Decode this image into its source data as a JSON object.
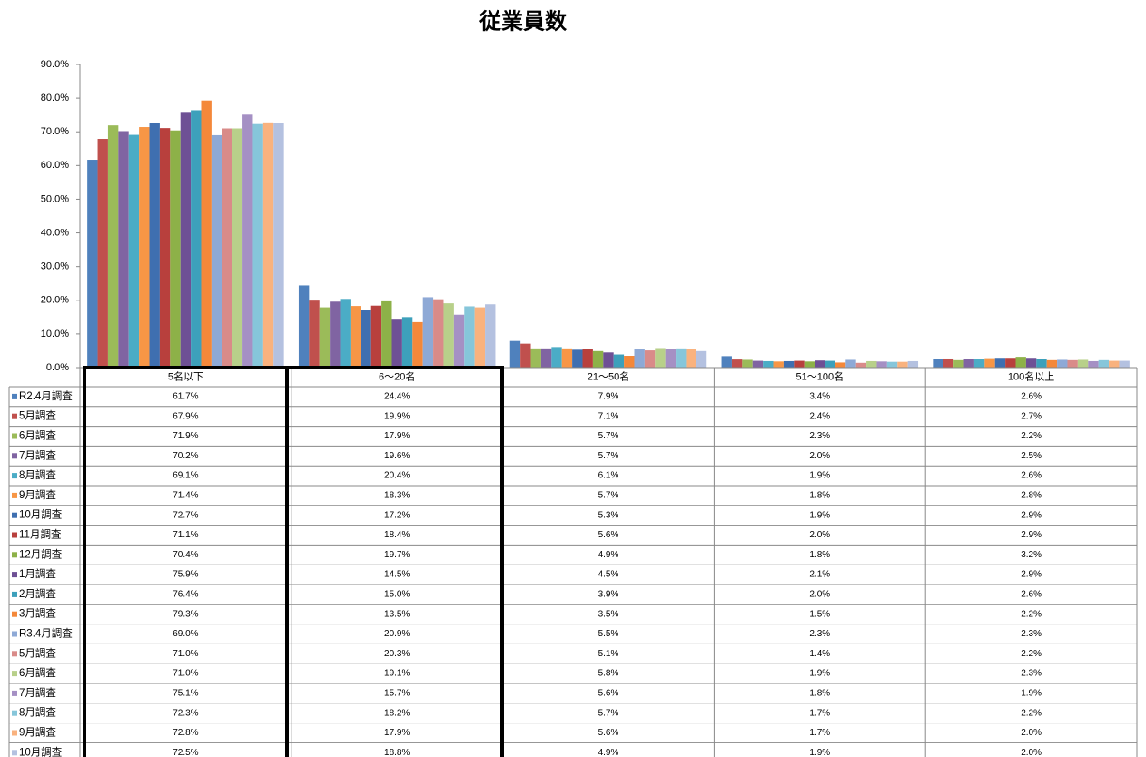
{
  "chart_data": {
    "type": "bar",
    "title": "従業員数",
    "categories": [
      "5名以下",
      "6～20名",
      "21～50名",
      "51～100名",
      "100名以上"
    ],
    "ylim": [
      0,
      90
    ],
    "yticks": [
      {
        "value": 0,
        "label": "0.0%"
      },
      {
        "value": 10,
        "label": "10.0%"
      },
      {
        "value": 20,
        "label": "20.0%"
      },
      {
        "value": 30,
        "label": "30.0%"
      },
      {
        "value": 40,
        "label": "40.0%"
      },
      {
        "value": 50,
        "label": "50.0%"
      },
      {
        "value": 60,
        "label": "60.0%"
      },
      {
        "value": 70,
        "label": "70.0%"
      },
      {
        "value": 80,
        "label": "80.0%"
      },
      {
        "value": 90,
        "label": "90.0%"
      }
    ],
    "series": [
      {
        "name": "R2.4月調査",
        "color": "#4F81BD",
        "values": [
          61.7,
          24.4,
          7.9,
          3.4,
          2.6
        ],
        "value_labels": [
          "61.7%",
          "24.4%",
          "7.9%",
          "3.4%",
          "2.6%"
        ]
      },
      {
        "name": "5月調査",
        "color": "#C0504D",
        "values": [
          67.9,
          19.9,
          7.1,
          2.4,
          2.7
        ],
        "value_labels": [
          "67.9%",
          "19.9%",
          "7.1%",
          "2.4%",
          "2.7%"
        ]
      },
      {
        "name": "6月調査",
        "color": "#9BBB59",
        "values": [
          71.9,
          17.9,
          5.7,
          2.3,
          2.2
        ],
        "value_labels": [
          "71.9%",
          "17.9%",
          "5.7%",
          "2.3%",
          "2.2%"
        ]
      },
      {
        "name": "7月調査",
        "color": "#8064A2",
        "values": [
          70.2,
          19.6,
          5.7,
          2.0,
          2.5
        ],
        "value_labels": [
          "70.2%",
          "19.6%",
          "5.7%",
          "2.0%",
          "2.5%"
        ]
      },
      {
        "name": "8月調査",
        "color": "#4BACC6",
        "values": [
          69.1,
          20.4,
          6.1,
          1.9,
          2.6
        ],
        "value_labels": [
          "69.1%",
          "20.4%",
          "6.1%",
          "1.9%",
          "2.6%"
        ]
      },
      {
        "name": "9月調査",
        "color": "#F79646",
        "values": [
          71.4,
          18.3,
          5.7,
          1.8,
          2.8
        ],
        "value_labels": [
          "71.4%",
          "18.3%",
          "5.7%",
          "1.8%",
          "2.8%"
        ]
      },
      {
        "name": "10月調査",
        "color": "#3F6FB0",
        "values": [
          72.7,
          17.2,
          5.3,
          1.9,
          2.9
        ],
        "value_labels": [
          "72.7%",
          "17.2%",
          "5.3%",
          "1.9%",
          "2.9%"
        ]
      },
      {
        "name": "11月調査",
        "color": "#B8403D",
        "values": [
          71.1,
          18.4,
          5.6,
          2.0,
          2.9
        ],
        "value_labels": [
          "71.1%",
          "18.4%",
          "5.6%",
          "2.0%",
          "2.9%"
        ]
      },
      {
        "name": "12月調査",
        "color": "#8DB148",
        "values": [
          70.4,
          19.7,
          4.9,
          1.8,
          3.2
        ],
        "value_labels": [
          "70.4%",
          "19.7%",
          "4.9%",
          "1.8%",
          "3.2%"
        ]
      },
      {
        "name": "1月調査",
        "color": "#6E5095",
        "values": [
          75.9,
          14.5,
          4.5,
          2.1,
          2.9
        ],
        "value_labels": [
          "75.9%",
          "14.5%",
          "4.5%",
          "2.1%",
          "2.9%"
        ]
      },
      {
        "name": "2月調査",
        "color": "#3DA0BB",
        "values": [
          76.4,
          15.0,
          3.9,
          2.0,
          2.6
        ],
        "value_labels": [
          "76.4%",
          "15.0%",
          "3.9%",
          "2.0%",
          "2.6%"
        ]
      },
      {
        "name": "3月調査",
        "color": "#F4883A",
        "values": [
          79.3,
          13.5,
          3.5,
          1.5,
          2.2
        ],
        "value_labels": [
          "79.3%",
          "13.5%",
          "3.5%",
          "1.5%",
          "2.2%"
        ]
      },
      {
        "name": "R3.4月調査",
        "color": "#8EA9D6",
        "values": [
          69.0,
          20.9,
          5.5,
          2.3,
          2.3
        ],
        "value_labels": [
          "69.0%",
          "20.9%",
          "5.5%",
          "2.3%",
          "2.3%"
        ]
      },
      {
        "name": "5月調査",
        "color": "#D98B89",
        "values": [
          71.0,
          20.3,
          5.1,
          1.4,
          2.2
        ],
        "value_labels": [
          "71.0%",
          "20.3%",
          "5.1%",
          "1.4%",
          "2.2%"
        ]
      },
      {
        "name": "6月調査",
        "color": "#B8D08A",
        "values": [
          71.0,
          19.1,
          5.8,
          1.9,
          2.3
        ],
        "value_labels": [
          "71.0%",
          "19.1%",
          "5.8%",
          "1.9%",
          "2.3%"
        ]
      },
      {
        "name": "7月調査",
        "color": "#A590C4",
        "values": [
          75.1,
          15.7,
          5.6,
          1.8,
          1.9
        ],
        "value_labels": [
          "75.1%",
          "15.7%",
          "5.6%",
          "1.8%",
          "1.9%"
        ]
      },
      {
        "name": "8月調査",
        "color": "#86C6DA",
        "values": [
          72.3,
          18.2,
          5.7,
          1.7,
          2.2
        ],
        "value_labels": [
          "72.3%",
          "18.2%",
          "5.7%",
          "1.7%",
          "2.2%"
        ]
      },
      {
        "name": "9月調査",
        "color": "#F9B27E",
        "values": [
          72.8,
          17.9,
          5.6,
          1.7,
          2.0
        ],
        "value_labels": [
          "72.8%",
          "17.9%",
          "5.6%",
          "1.7%",
          "2.0%"
        ]
      },
      {
        "name": "10月調査",
        "color": "#B4C1E0",
        "values": [
          72.5,
          18.8,
          4.9,
          1.9,
          2.0
        ],
        "value_labels": [
          "72.5%",
          "18.8%",
          "4.9%",
          "1.9%",
          "2.0%"
        ]
      }
    ]
  }
}
